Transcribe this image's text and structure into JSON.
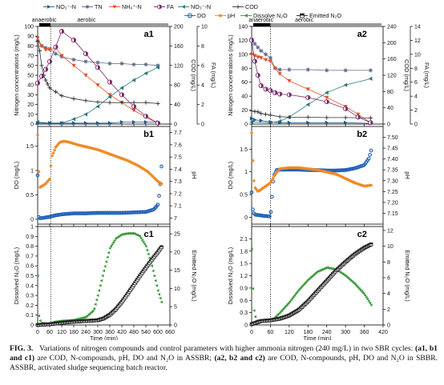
{
  "legend": [
    {
      "label": "NO₂⁻-N",
      "color": "#1f5a8a",
      "marker": "tri-right"
    },
    {
      "label": "TN",
      "color": "#5a6a8a",
      "marker": "star"
    },
    {
      "label": "NH₄⁺-N",
      "color": "#e0522a",
      "marker": "tri-down"
    },
    {
      "label": "FA",
      "color": "#7a2a6a",
      "marker": "half-circle"
    },
    {
      "label": "NO₃⁻-N",
      "color": "#2a7a7a",
      "marker": "tri-left"
    },
    {
      "label": "COD",
      "color": "#333333",
      "marker": "plus"
    },
    {
      "label": "DO",
      "color": "#1f5fb8",
      "marker": "circle"
    },
    {
      "label": "pH",
      "color": "#f08a24",
      "marker": "star"
    },
    {
      "label": "Dissolve N₂O",
      "color": "#3a9a3a",
      "marker": "tri-left"
    },
    {
      "label": "Emitted N₂O",
      "color": "#222222",
      "marker": "half-square"
    }
  ],
  "phase_labels": {
    "anaerobic": "anaerobic",
    "aerobic": "aerobic"
  },
  "x_label": "Time (min)",
  "chart_data": [
    {
      "panel": "a1",
      "type": "line",
      "xlim": [
        0,
        660
      ],
      "xticks": [
        0,
        60,
        120,
        180,
        240,
        300,
        360,
        420,
        480,
        540,
        600,
        660
      ],
      "ylabel": "Nitrogen concentrations (mg/L)",
      "ylim": [
        0,
        100
      ],
      "yticks": [
        0,
        10,
        20,
        30,
        40,
        50,
        60,
        70,
        80,
        90,
        100
      ],
      "y2label": "COD (mg/L)",
      "y2lim": [
        0,
        200
      ],
      "y2ticks": [
        0,
        40,
        80,
        120,
        160,
        200
      ],
      "y3label": "FA (mg/L)",
      "y3lim": [
        0,
        10
      ],
      "y3ticks": [
        0,
        2,
        4,
        6,
        8,
        10
      ],
      "series": [
        {
          "name": "TN",
          "axis": "y",
          "x": [
            0,
            20,
            40,
            60,
            90,
            120,
            180,
            240,
            300,
            360,
            420,
            480,
            540,
            600
          ],
          "y": [
            85,
            80,
            78,
            77,
            72,
            69,
            66,
            64,
            63,
            62,
            62,
            61,
            61,
            60
          ]
        },
        {
          "name": "NH₄⁺-N",
          "axis": "y",
          "x": [
            0,
            20,
            40,
            60,
            90,
            120,
            180,
            240,
            300,
            360,
            420,
            480,
            540,
            600
          ],
          "y": [
            88,
            80,
            76,
            76,
            78,
            70,
            60,
            50,
            40,
            30,
            22,
            14,
            7,
            1
          ]
        },
        {
          "name": "NO₃⁻-N",
          "axis": "y",
          "x": [
            0,
            60,
            120,
            180,
            240,
            300,
            360,
            420,
            480,
            540,
            600
          ],
          "y": [
            2,
            1,
            1,
            5,
            10,
            18,
            28,
            37,
            45,
            52,
            58
          ]
        },
        {
          "name": "NO₂⁻-N",
          "axis": "y",
          "x": [
            0,
            60,
            120,
            180,
            240,
            300,
            360,
            420,
            480,
            540,
            600
          ],
          "y": [
            1,
            1,
            1,
            1,
            1,
            1,
            1,
            2,
            2,
            2,
            2
          ]
        },
        {
          "name": "COD",
          "axis": "y2",
          "x": [
            0,
            10,
            20,
            30,
            40,
            50,
            60,
            90,
            120,
            180,
            240,
            300,
            360,
            420,
            480,
            540,
            600
          ],
          "y": [
            170,
            150,
            120,
            100,
            90,
            82,
            74,
            66,
            58,
            52,
            48,
            45,
            44,
            44,
            44,
            44,
            42
          ]
        },
        {
          "name": "FA",
          "axis": "y3",
          "x": [
            0,
            20,
            40,
            60,
            90,
            120,
            180,
            240,
            300,
            360,
            420,
            480,
            540,
            600
          ],
          "y": [
            4.2,
            4.9,
            5.6,
            6.4,
            7.9,
            9.5,
            8.6,
            7.2,
            5.8,
            4.3,
            3.0,
            1.8,
            0.8,
            0.1
          ]
        }
      ]
    },
    {
      "panel": "a2",
      "type": "line",
      "xlim": [
        0,
        420
      ],
      "xticks": [
        0,
        60,
        120,
        180,
        240,
        300,
        360,
        420
      ],
      "ylabel": "Nitrogen concentrations (mg/L)",
      "ylim": [
        0,
        140
      ],
      "yticks": [
        0,
        20,
        40,
        60,
        80,
        100,
        120,
        140
      ],
      "y2label": "COD (mg/L)",
      "y2lim": [
        0,
        240
      ],
      "y2ticks": [
        0,
        40,
        80,
        120,
        160,
        200,
        240
      ],
      "y3label": "FA (mg/L)",
      "y3lim": [
        0,
        14
      ],
      "y3ticks": [
        0,
        2,
        4,
        6,
        8,
        10,
        12,
        14
      ],
      "series": [
        {
          "name": "TN",
          "axis": "y",
          "x": [
            0,
            10,
            20,
            30,
            45,
            60,
            75,
            90,
            120,
            180,
            240,
            300,
            380
          ],
          "y": [
            122,
            115,
            110,
            105,
            100,
            95,
            80,
            78,
            78,
            78,
            77,
            77,
            77
          ]
        },
        {
          "name": "NH₄⁺-N",
          "axis": "y",
          "x": [
            0,
            10,
            20,
            30,
            45,
            60,
            75,
            90,
            120,
            180,
            240,
            300,
            340,
            380
          ],
          "y": [
            100,
            98,
            96,
            95,
            92,
            90,
            80,
            72,
            62,
            50,
            38,
            25,
            14,
            2
          ]
        },
        {
          "name": "NO₃⁻-N",
          "axis": "y",
          "x": [
            0,
            60,
            90,
            120,
            180,
            240,
            300,
            380
          ],
          "y": [
            3,
            2,
            4,
            10,
            28,
            45,
            56,
            65
          ]
        },
        {
          "name": "NO₂⁻-N",
          "axis": "y",
          "x": [
            0,
            10,
            30,
            60,
            90,
            120,
            180,
            240,
            300,
            380
          ],
          "y": [
            8,
            6,
            5,
            3,
            2,
            2,
            2,
            2,
            2,
            1
          ]
        },
        {
          "name": "COD",
          "axis": "y2",
          "x": [
            0,
            10,
            20,
            30,
            45,
            60,
            90,
            120,
            180,
            240,
            300,
            380
          ],
          "y": [
            32,
            31,
            30,
            26,
            24,
            22,
            18,
            17,
            17,
            16,
            16,
            15
          ]
        },
        {
          "name": "FA",
          "axis": "y3",
          "x": [
            0,
            10,
            20,
            30,
            45,
            60,
            75,
            90,
            120,
            180,
            240,
            300,
            340,
            380
          ],
          "y": [
            12.0,
            9.0,
            7.0,
            5.5,
            5.0,
            4.8,
            4.5,
            4.3,
            4.2,
            3.8,
            3.2,
            2.2,
            1.0,
            0.2
          ]
        }
      ]
    },
    {
      "panel": "b1",
      "type": "scatter",
      "xlim": [
        0,
        660
      ],
      "xticks": [
        0,
        60,
        120,
        180,
        240,
        300,
        360,
        420,
        480,
        540,
        600,
        660
      ],
      "ylabel": "DO (mg/L)",
      "ylim": [
        -0.1,
        1.9
      ],
      "yticks": [
        0.0,
        0.5,
        1.0,
        1.5
      ],
      "y2label": "pH",
      "y2lim": [
        6.95,
        7.75
      ],
      "y2ticks": [
        7.0,
        7.1,
        7.2,
        7.3,
        7.4,
        7.5,
        7.6,
        7.7
      ],
      "series": [
        {
          "name": "DO",
          "axis": "y",
          "x": [
            0,
            5,
            10,
            15,
            30,
            60,
            90,
            120,
            180,
            240,
            300,
            360,
            420,
            480,
            540,
            580,
            600,
            610,
            620
          ],
          "y": [
            0.9,
            0.05,
            0.02,
            0.02,
            0.03,
            0.05,
            0.08,
            0.1,
            0.12,
            0.12,
            0.13,
            0.13,
            0.13,
            0.14,
            0.15,
            0.2,
            0.3,
            0.6,
            1.2
          ]
        },
        {
          "name": "pH",
          "axis": "y2",
          "x": [
            0,
            3,
            6,
            10,
            20,
            40,
            60,
            70,
            90,
            110,
            130,
            160,
            200,
            250,
            300,
            350,
            400,
            450,
            500,
            550,
            600,
            620
          ],
          "y": [
            7.68,
            7.5,
            7.38,
            7.25,
            7.26,
            7.28,
            7.32,
            7.5,
            7.58,
            7.62,
            7.63,
            7.62,
            7.6,
            7.58,
            7.56,
            7.53,
            7.5,
            7.47,
            7.43,
            7.38,
            7.3,
            7.28
          ]
        }
      ]
    },
    {
      "panel": "b2",
      "type": "scatter",
      "xlim": [
        0,
        420
      ],
      "xticks": [
        0,
        60,
        120,
        180,
        240,
        300,
        360,
        420
      ],
      "ylabel": "DO (mg/L)",
      "ylim": [
        -0.15,
        2.0
      ],
      "yticks": [
        0.0,
        0.5,
        1.0,
        1.5
      ],
      "y2label": "pH",
      "y2lim": [
        7.1,
        7.55
      ],
      "y2ticks": [
        7.15,
        7.2,
        7.25,
        7.3,
        7.35,
        7.4,
        7.45,
        7.5
      ],
      "series": [
        {
          "name": "DO",
          "axis": "y",
          "x": [
            0,
            3,
            6,
            10,
            20,
            40,
            60,
            70,
            80,
            90,
            120,
            150,
            180,
            210,
            240,
            270,
            300,
            330,
            360,
            375,
            385
          ],
          "y": [
            0.55,
            0.2,
            0.1,
            0.06,
            0.05,
            0.03,
            0.02,
            0.9,
            1.04,
            1.05,
            1.05,
            1.05,
            1.04,
            1.04,
            1.03,
            1.03,
            1.04,
            1.08,
            1.15,
            1.3,
            1.55
          ]
        },
        {
          "name": "pH",
          "axis": "y2",
          "x": [
            0,
            3,
            6,
            10,
            20,
            40,
            60,
            75,
            90,
            120,
            150,
            180,
            210,
            240,
            270,
            300,
            330,
            360,
            385
          ],
          "y": [
            7.52,
            7.42,
            7.32,
            7.27,
            7.25,
            7.27,
            7.29,
            7.33,
            7.355,
            7.36,
            7.36,
            7.355,
            7.35,
            7.34,
            7.33,
            7.31,
            7.29,
            7.275,
            7.28
          ]
        }
      ]
    },
    {
      "panel": "c1",
      "type": "line",
      "xlim": [
        0,
        660
      ],
      "xticks": [
        0,
        60,
        120,
        180,
        240,
        300,
        360,
        420,
        480,
        540,
        600,
        660
      ],
      "ylabel": "Dissolved N₂O (mg/L)",
      "ylim": [
        0,
        1.0
      ],
      "yticks": [
        0.0,
        0.1,
        0.2,
        0.3,
        0.4,
        0.5,
        0.6,
        0.7,
        0.8,
        0.9,
        1.0
      ],
      "y2label": "Emitted N₂O (mg/L)",
      "y2lim": [
        0,
        27
      ],
      "y2ticks": [
        0,
        5,
        10,
        15,
        20,
        25
      ],
      "series": [
        {
          "name": "Dissolve N₂O",
          "axis": "y",
          "x": [
            0,
            5,
            15,
            60,
            80,
            120,
            180,
            240,
            280,
            300,
            330,
            360,
            390,
            420,
            450,
            480,
            510,
            540,
            570,
            600,
            620
          ],
          "y": [
            0.5,
            0.1,
            0.02,
            0.01,
            0.03,
            0.04,
            0.05,
            0.08,
            0.15,
            0.3,
            0.55,
            0.78,
            0.88,
            0.92,
            0.93,
            0.93,
            0.9,
            0.8,
            0.6,
            0.35,
            0.22
          ]
        },
        {
          "name": "Emitted N₂O",
          "axis": "y2",
          "x": [
            0,
            60,
            120,
            180,
            240,
            300,
            330,
            360,
            390,
            420,
            450,
            480,
            510,
            540,
            570,
            600,
            620
          ],
          "y": [
            0,
            0.2,
            0.6,
            0.9,
            1.1,
            1.3,
            1.8,
            2.8,
            4.3,
            6.3,
            8.6,
            11.0,
            13.4,
            15.7,
            17.9,
            20.0,
            21.5
          ]
        }
      ]
    },
    {
      "panel": "c2",
      "type": "line",
      "xlim": [
        0,
        420
      ],
      "xticks": [
        0,
        60,
        120,
        180,
        240,
        300,
        360,
        420
      ],
      "ylabel": "Dissolved N₂O (mg/L)",
      "ylim": [
        0,
        2.4
      ],
      "yticks": [
        0.0,
        0.3,
        0.6,
        0.9,
        1.2,
        1.5,
        1.8,
        2.1
      ],
      "y2label": "Emitted N₂O (mg/L)",
      "y2lim": [
        0,
        12.5
      ],
      "y2ticks": [
        0,
        2,
        4,
        6,
        8,
        10,
        12
      ],
      "series": [
        {
          "name": "Dissolve N₂O",
          "axis": "y",
          "x": [
            0,
            3,
            8,
            15,
            30,
            60,
            70,
            90,
            120,
            150,
            180,
            210,
            240,
            270,
            300,
            330,
            360,
            385
          ],
          "y": [
            1.85,
            1.0,
            0.3,
            0.1,
            0.1,
            0.12,
            0.15,
            0.3,
            0.55,
            0.85,
            1.1,
            1.3,
            1.4,
            1.35,
            1.2,
            1.0,
            0.75,
            0.45
          ]
        },
        {
          "name": "Emitted N₂O",
          "axis": "y2",
          "x": [
            0,
            30,
            60,
            90,
            120,
            150,
            180,
            210,
            240,
            270,
            300,
            330,
            360,
            385
          ],
          "y": [
            0.1,
            0.5,
            0.6,
            0.8,
            1.2,
            1.9,
            3.0,
            4.3,
            5.6,
            6.9,
            8.0,
            9.0,
            9.8,
            10.3
          ]
        }
      ]
    }
  ],
  "caption": {
    "figure_no": "FIG. 3.",
    "text_1": "Variations of nitrogen compounds and control parameters with higher ammonia nitrogen (240 mg/L) in two SBR cycles: ",
    "bold_1": "(a1, b1 and c1)",
    "text_2": " are COD, N-compounds, pH, DO and N₂O in ASSBR; ",
    "bold_2": "(a2, b2 and c2)",
    "text_3": " are COD, N-compounds, pH, DO and N₂O in SBBR. ASSBR, activated sludge sequencing batch reactor."
  }
}
